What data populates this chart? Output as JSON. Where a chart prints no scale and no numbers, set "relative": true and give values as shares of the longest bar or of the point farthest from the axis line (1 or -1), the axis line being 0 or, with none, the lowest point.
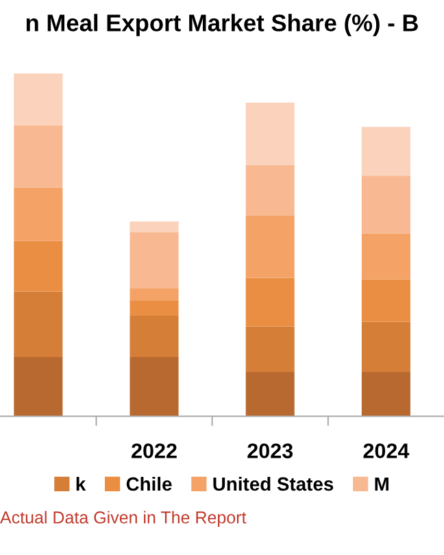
{
  "chart_data": {
    "type": "bar",
    "title": "n Meal Export Market Share (%) - B",
    "stacked": true,
    "relative": true,
    "legend": "bottom",
    "grid": false,
    "categories": [
      null,
      "2022",
      "2023",
      "2024"
    ],
    "series": [
      {
        "color": "#b8692f",
        "values": [
          0.173,
          0.173,
          0.129,
          0.129
        ]
      },
      {
        "name": "k",
        "color": "#d57e38",
        "values": [
          0.191,
          0.12,
          0.133,
          0.147
        ]
      },
      {
        "name": "Chile",
        "color": "#e98e42",
        "values": [
          0.147,
          0.044,
          0.142,
          0.124
        ]
      },
      {
        "name": "United States",
        "color": "#f4a266",
        "values": [
          0.156,
          0.036,
          0.182,
          0.133
        ]
      },
      {
        "name": "M",
        "color": "#f8b992",
        "values": [
          0.182,
          0.164,
          0.147,
          0.169
        ]
      },
      {
        "color": "#fbd2bb",
        "values": [
          0.151,
          0.031,
          0.182,
          0.142
        ]
      }
    ],
    "annotations": [
      "Actual Data Given in The Report"
    ]
  }
}
